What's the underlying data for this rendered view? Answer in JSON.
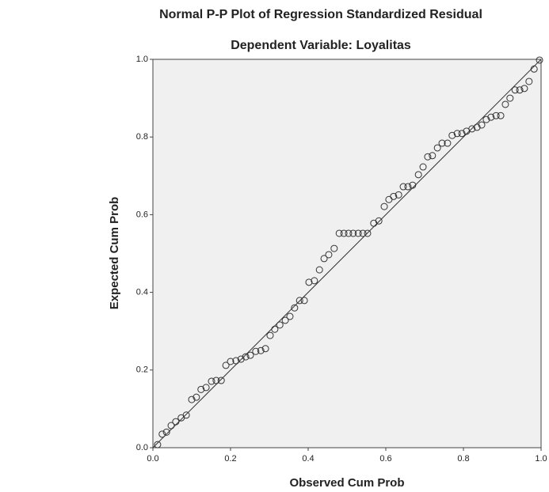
{
  "chart_data": {
    "type": "scatter",
    "title": "Normal P-P Plot of Regression Standardized Residual",
    "subtitle": "Dependent Variable: Loyalitas",
    "x_label": "Observed Cum Prob",
    "y_label": "Expected Cum Prob",
    "xlim": [
      0,
      1
    ],
    "ylim": [
      0,
      1
    ],
    "xticks": [
      {
        "value": 0,
        "label": "0.0"
      },
      {
        "value": 0.2,
        "label": "0.2"
      },
      {
        "value": 0.4,
        "label": "0.4"
      },
      {
        "value": 0.6,
        "label": "0.6"
      },
      {
        "value": 0.8,
        "label": "0.8"
      },
      {
        "value": 1,
        "label": "1.0"
      }
    ],
    "yticks": [
      {
        "value": 0,
        "label": "0.0"
      },
      {
        "value": 0.2,
        "label": "0.2"
      },
      {
        "value": 0.4,
        "label": "0.4"
      },
      {
        "value": 0.6,
        "label": "0.6"
      },
      {
        "value": 0.8,
        "label": "0.8"
      },
      {
        "value": 1,
        "label": "1.0"
      }
    ],
    "reference_line": true,
    "color": "#333333",
    "x": [
      0.012,
      0.024,
      0.035,
      0.047,
      0.059,
      0.073,
      0.086,
      0.1,
      0.112,
      0.124,
      0.137,
      0.151,
      0.163,
      0.176,
      0.188,
      0.2,
      0.214,
      0.227,
      0.239,
      0.251,
      0.265,
      0.278,
      0.29,
      0.302,
      0.314,
      0.327,
      0.341,
      0.353,
      0.365,
      0.378,
      0.39,
      0.402,
      0.416,
      0.429,
      0.441,
      0.453,
      0.467,
      0.48,
      0.492,
      0.504,
      0.516,
      0.529,
      0.541,
      0.553,
      0.569,
      0.582,
      0.596,
      0.608,
      0.62,
      0.633,
      0.645,
      0.657,
      0.669,
      0.684,
      0.696,
      0.708,
      0.72,
      0.733,
      0.745,
      0.759,
      0.771,
      0.784,
      0.796,
      0.808,
      0.822,
      0.835,
      0.847,
      0.859,
      0.871,
      0.884,
      0.896,
      0.908,
      0.92,
      0.933,
      0.945,
      0.957,
      0.969,
      0.982,
      0.996
    ],
    "y": [
      0.008,
      0.035,
      0.04,
      0.057,
      0.067,
      0.077,
      0.084,
      0.124,
      0.13,
      0.15,
      0.155,
      0.171,
      0.173,
      0.173,
      0.212,
      0.222,
      0.224,
      0.228,
      0.234,
      0.238,
      0.248,
      0.25,
      0.255,
      0.289,
      0.305,
      0.316,
      0.328,
      0.338,
      0.36,
      0.379,
      0.379,
      0.426,
      0.43,
      0.458,
      0.487,
      0.497,
      0.513,
      0.552,
      0.552,
      0.552,
      0.552,
      0.552,
      0.552,
      0.552,
      0.578,
      0.584,
      0.621,
      0.639,
      0.647,
      0.651,
      0.672,
      0.672,
      0.676,
      0.703,
      0.723,
      0.749,
      0.752,
      0.772,
      0.784,
      0.784,
      0.804,
      0.809,
      0.809,
      0.815,
      0.821,
      0.825,
      0.831,
      0.845,
      0.851,
      0.855,
      0.855,
      0.884,
      0.9,
      0.921,
      0.921,
      0.925,
      0.943,
      0.975,
      0.998
    ]
  }
}
